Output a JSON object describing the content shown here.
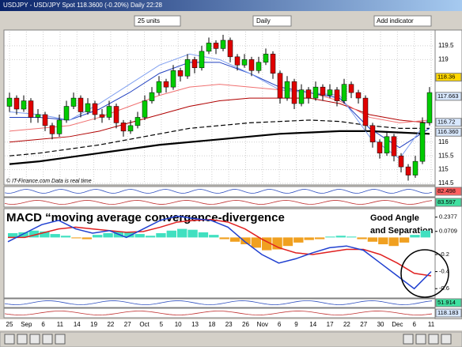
{
  "titlebar": "USDJPY - USD/JPY Spot  118.3600 (-0.20%)   Daily  22:28",
  "toolbar": {
    "units": "25 units",
    "timeframe": "Daily",
    "add_indicator": "Add indicator"
  },
  "chart_data": {
    "type": "candlestick",
    "up_color": "#00cc00",
    "down_color": "#e00000",
    "ylim": [
      114.5,
      119.9
    ],
    "yticks": [
      119.5,
      119,
      116,
      115.5,
      115,
      114.5
    ],
    "price_flags": [
      {
        "value": 118.36,
        "label": "118.36",
        "color": "#ffd700"
      },
      {
        "value": 117.663,
        "label": "117.663",
        "color": "#d8e8ff"
      },
      {
        "value": 116.72,
        "label": "116.72",
        "color": "#d8e8ff"
      },
      {
        "value": 116.36,
        "label": "116.360",
        "color": "#d8e8ff"
      }
    ],
    "grid": true,
    "candles": [
      [
        117.3,
        117.8,
        117.1,
        117.6
      ],
      [
        117.6,
        117.7,
        117.0,
        117.2
      ],
      [
        117.2,
        117.7,
        117.1,
        117.5
      ],
      [
        117.5,
        117.6,
        116.7,
        116.9
      ],
      [
        116.9,
        117.2,
        116.7,
        117.0
      ],
      [
        117.0,
        117.1,
        116.4,
        116.6
      ],
      [
        116.6,
        116.7,
        116.1,
        116.3
      ],
      [
        116.3,
        117.0,
        116.2,
        116.8
      ],
      [
        116.8,
        117.5,
        116.7,
        117.3
      ],
      [
        117.3,
        117.8,
        117.2,
        117.6
      ],
      [
        117.6,
        117.7,
        116.9,
        117.1
      ],
      [
        117.1,
        117.6,
        117.0,
        117.4
      ],
      [
        117.4,
        117.5,
        116.8,
        117.0
      ],
      [
        117.0,
        117.2,
        116.7,
        116.9
      ],
      [
        116.9,
        117.5,
        116.8,
        117.3
      ],
      [
        117.3,
        117.4,
        116.5,
        116.7
      ],
      [
        116.7,
        116.8,
        116.2,
        116.4
      ],
      [
        116.4,
        116.8,
        116.3,
        116.6
      ],
      [
        116.6,
        117.1,
        116.5,
        116.9
      ],
      [
        116.9,
        117.7,
        116.8,
        117.5
      ],
      [
        117.5,
        118.0,
        117.4,
        117.8
      ],
      [
        117.8,
        118.4,
        117.7,
        118.2
      ],
      [
        118.2,
        118.3,
        117.8,
        118.0
      ],
      [
        118.0,
        118.8,
        117.9,
        118.6
      ],
      [
        118.6,
        118.7,
        118.2,
        118.4
      ],
      [
        118.4,
        119.2,
        118.3,
        119.0
      ],
      [
        119.0,
        119.1,
        118.5,
        118.7
      ],
      [
        118.7,
        119.5,
        118.6,
        119.3
      ],
      [
        119.3,
        119.8,
        119.2,
        119.6
      ],
      [
        119.6,
        119.7,
        119.2,
        119.4
      ],
      [
        119.4,
        119.9,
        119.3,
        119.7
      ],
      [
        119.7,
        119.8,
        118.9,
        119.1
      ],
      [
        119.1,
        119.2,
        118.6,
        118.8
      ],
      [
        118.8,
        119.2,
        118.7,
        119.0
      ],
      [
        119.0,
        119.1,
        118.4,
        118.6
      ],
      [
        118.6,
        119.1,
        118.5,
        118.9
      ],
      [
        118.9,
        119.4,
        118.8,
        119.2
      ],
      [
        119.2,
        119.3,
        118.3,
        118.5
      ],
      [
        118.5,
        118.6,
        117.4,
        117.6
      ],
      [
        117.6,
        118.4,
        117.5,
        118.2
      ],
      [
        118.2,
        118.3,
        117.2,
        117.4
      ],
      [
        117.4,
        118.1,
        117.3,
        117.9
      ],
      [
        117.9,
        118.0,
        117.4,
        117.6
      ],
      [
        117.6,
        118.2,
        117.5,
        118.0
      ],
      [
        118.0,
        118.1,
        117.5,
        117.7
      ],
      [
        117.7,
        118.1,
        117.6,
        117.9
      ],
      [
        117.9,
        118.0,
        117.3,
        117.5
      ],
      [
        117.5,
        118.3,
        117.4,
        118.1
      ],
      [
        118.1,
        118.2,
        117.6,
        117.8
      ],
      [
        117.8,
        117.9,
        117.4,
        117.6
      ],
      [
        117.6,
        117.7,
        116.4,
        116.6
      ],
      [
        116.6,
        116.7,
        115.8,
        116.0
      ],
      [
        116.0,
        116.1,
        115.4,
        115.6
      ],
      [
        115.6,
        116.4,
        115.5,
        116.2
      ],
      [
        116.2,
        116.3,
        115.3,
        115.5
      ],
      [
        115.5,
        115.6,
        114.9,
        115.1
      ],
      [
        115.1,
        115.2,
        114.6,
        114.8
      ],
      [
        114.8,
        115.5,
        114.7,
        115.3
      ],
      [
        115.3,
        116.9,
        115.2,
        116.7
      ],
      [
        116.7,
        118.0,
        116.6,
        117.8
      ]
    ],
    "moving_averages": [
      {
        "color": "#000000",
        "width": 2.2,
        "values": [
          115.2,
          115.3,
          115.45,
          115.6,
          115.75,
          115.9,
          116.0,
          116.1,
          116.2,
          116.3,
          116.35,
          116.4,
          116.4,
          116.35,
          116.3
        ]
      },
      {
        "color": "#000000",
        "width": 1.2,
        "dashed": true,
        "values": [
          115.5,
          115.6,
          115.75,
          115.9,
          116.1,
          116.3,
          116.5,
          116.6,
          116.7,
          116.75,
          116.8,
          116.75,
          116.6,
          116.5,
          116.5
        ]
      },
      {
        "color": "#b00000",
        "width": 1,
        "values": [
          116.0,
          116.1,
          116.2,
          116.4,
          116.7,
          117.0,
          117.3,
          117.5,
          117.6,
          117.6,
          117.6,
          117.4,
          117.0,
          116.8,
          116.7
        ]
      },
      {
        "color": "#f07070",
        "width": 1,
        "values": [
          116.4,
          116.5,
          116.6,
          116.9,
          117.3,
          117.7,
          118.0,
          118.1,
          118.0,
          117.9,
          117.8,
          117.5,
          116.9,
          116.7,
          116.8
        ]
      },
      {
        "color": "#2040c0",
        "width": 1,
        "values": [
          116.9,
          116.9,
          116.8,
          117.2,
          117.8,
          118.5,
          118.9,
          118.9,
          118.5,
          118.0,
          117.8,
          117.6,
          116.5,
          115.8,
          116.5
        ]
      },
      {
        "color": "#80a0f0",
        "width": 1,
        "values": [
          117.1,
          117.0,
          116.8,
          117.4,
          118.1,
          118.8,
          119.2,
          119.0,
          118.5,
          117.9,
          117.8,
          117.7,
          116.2,
          115.4,
          116.9
        ]
      }
    ]
  },
  "watermark": "© IT-Finance.com  Data is real time",
  "strips": [
    {
      "label": "82.498",
      "color": "#ff6060"
    },
    {
      "label": "83.597",
      "color": "#40e0a0"
    },
    {
      "label": "51.914",
      "color": "#40e0a0"
    },
    {
      "label": "118.183",
      "color": "#d8e8ff"
    }
  ],
  "macd": {
    "title": "MACD “moving average convergence-divergence",
    "annotation": [
      "Good Angle",
      "and Separation"
    ],
    "ylim": [
      -0.7,
      0.3
    ],
    "yticks": [
      {
        "value": 0.2377,
        "label": "0.2377"
      },
      {
        "value": 0.0709,
        "label": "0.0709"
      },
      -0.2,
      -0.4,
      -0.6
    ],
    "macd_color": "#2040d0",
    "signal_color": "#e02020",
    "pos_color": "#40e0c0",
    "neg_color": "#f0a020",
    "macd_line": [
      -0.05,
      0.05,
      0.15,
      0.2,
      0.1,
      0.05,
      0.08,
      0.0,
      0.1,
      0.2,
      0.25,
      0.22,
      0.2,
      0.12,
      -0.05,
      -0.2,
      -0.3,
      -0.25,
      -0.18,
      -0.12,
      -0.1,
      -0.15,
      -0.3,
      -0.45,
      -0.6,
      -0.4
    ],
    "signal_line": [
      0.0,
      0.0,
      0.05,
      0.1,
      0.12,
      0.1,
      0.08,
      0.06,
      0.07,
      0.12,
      0.18,
      0.2,
      0.21,
      0.18,
      0.1,
      -0.02,
      -0.12,
      -0.18,
      -0.2,
      -0.17,
      -0.14,
      -0.14,
      -0.2,
      -0.3,
      -0.42,
      -0.45
    ],
    "histogram": [
      0.05,
      0.06,
      0.08,
      0.07,
      0.04,
      0.02,
      -0.01,
      -0.02,
      0.03,
      0.05,
      0.07,
      0.06,
      0.04,
      0.02,
      0.05,
      0.08,
      0.1,
      0.09,
      0.06,
      0.03,
      -0.02,
      -0.05,
      -0.08,
      -0.12,
      -0.15,
      -0.14,
      -0.1,
      -0.06,
      -0.03,
      -0.02,
      0.01,
      0.02,
      0.01,
      -0.02,
      -0.05,
      -0.08,
      -0.1,
      -0.06,
      0.03,
      0.08
    ]
  },
  "x_labels": [
    "25",
    "Sep",
    "6",
    "11",
    "14",
    "19",
    "22",
    "27",
    "Oct",
    "5",
    "10",
    "13",
    "18",
    "23",
    "26",
    "Nov",
    "6",
    "9",
    "14",
    "17",
    "22",
    "27",
    "30",
    "Dec",
    "6",
    "11"
  ]
}
